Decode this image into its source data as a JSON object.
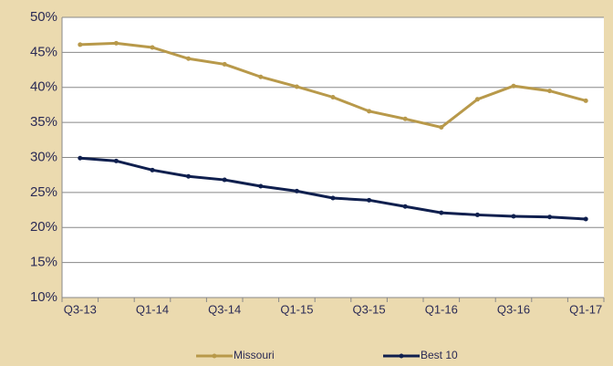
{
  "chart_data": {
    "type": "line",
    "categories": [
      "Q3-13",
      null,
      "Q1-14",
      null,
      "Q3-14",
      null,
      "Q1-15",
      null,
      "Q3-15",
      null,
      "Q1-16",
      null,
      "Q3-16",
      null,
      "Q1-17"
    ],
    "series": [
      {
        "name": "Missouri",
        "color": "#b8994a",
        "values": [
          46.1,
          46.3,
          45.7,
          44.1,
          43.3,
          41.5,
          40.1,
          38.6,
          36.6,
          35.5,
          34.3,
          38.3,
          40.2,
          39.5,
          38.1
        ]
      },
      {
        "name": "Best 10",
        "color": "#0f1f4e",
        "values": [
          29.9,
          29.5,
          28.2,
          27.3,
          26.8,
          25.9,
          25.2,
          24.2,
          23.9,
          23.0,
          22.1,
          21.8,
          21.6,
          21.5,
          21.2
        ]
      }
    ],
    "ylim": [
      10,
      50
    ],
    "yticks": [
      {
        "value": 10,
        "label": "10%"
      },
      {
        "value": 15,
        "label": "15%"
      },
      {
        "value": 20,
        "label": "20%"
      },
      {
        "value": 25,
        "label": "25%"
      },
      {
        "value": 30,
        "label": "30%"
      },
      {
        "value": 35,
        "label": "35%"
      },
      {
        "value": 40,
        "label": "40%"
      },
      {
        "value": 45,
        "label": "45%"
      },
      {
        "value": 50,
        "label": "50%"
      }
    ],
    "grid": true,
    "legend": "bottom"
  }
}
